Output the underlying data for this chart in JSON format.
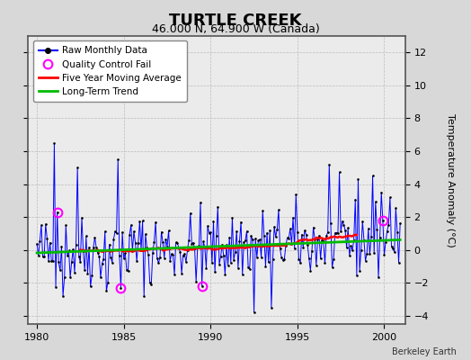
{
  "title": "TURTLE CREEK",
  "subtitle": "46.000 N, 64.900 W (Canada)",
  "ylabel": "Temperature Anomaly (°C)",
  "attribution": "Berkeley Earth",
  "xlim": [
    1979.5,
    2001.2
  ],
  "ylim": [
    -4.5,
    13.0
  ],
  "yticks": [
    -4,
    -2,
    0,
    2,
    4,
    6,
    8,
    10,
    12
  ],
  "xticks": [
    1980,
    1985,
    1990,
    1995,
    2000
  ],
  "fig_bg_color": "#d8d8d8",
  "plot_bg_color": "#ebebeb",
  "raw_color": "#0000ff",
  "dot_color": "#000000",
  "ma_color": "#ff0000",
  "trend_color": "#00bb00",
  "qc_color": "#ff00ff",
  "grid_color": "#bbbbbb",
  "seed": 42,
  "n_months": 252
}
